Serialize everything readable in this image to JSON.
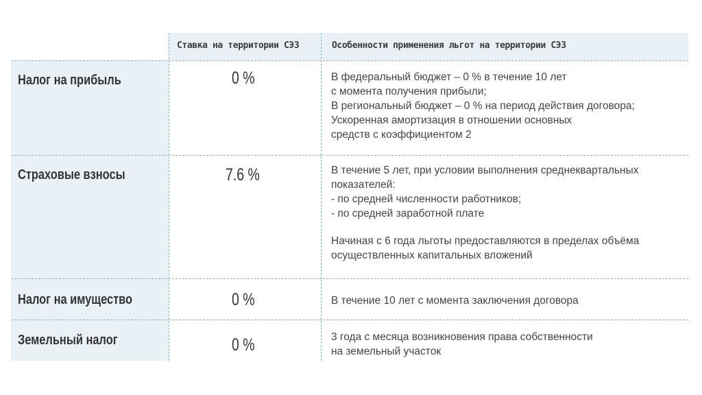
{
  "header": {
    "col_rate": "Ставка на территории СЭЗ",
    "col_features": "Особенности применения льгот на территории СЭЗ"
  },
  "rows": [
    {
      "label": "Налог на прибыль",
      "rate": "0 %",
      "lines": [
        "В федеральный бюджет – 0 % в течение 10 лет",
        "с момента получения прибыли;",
        "В региональный бюджет – 0 % на период действия договора;",
        "Ускоренная амортизация в отношении основных",
        "средств с коэффициентом 2"
      ]
    },
    {
      "label": "Страховые взносы",
      "rate": "7.6 %",
      "lines": [
        "В течение 5 лет, при условии выполнения среднеквартальных",
        "показателей:",
        "- по  средней численности работников;",
        "- по средней заработной плате",
        "",
        "Начиная с 6 года льготы предоставляются в пределах объёма",
        "осуществленных капитальных вложений"
      ]
    },
    {
      "label": "Налог на имущество",
      "rate": "0 %",
      "lines": [
        "В течение 10 лет с момента заключения договора"
      ]
    },
    {
      "label": "Земельный налог",
      "rate": "0 %",
      "lines": [
        "3 года с месяца возникновения права собственности",
        "на земельный участок"
      ]
    }
  ]
}
